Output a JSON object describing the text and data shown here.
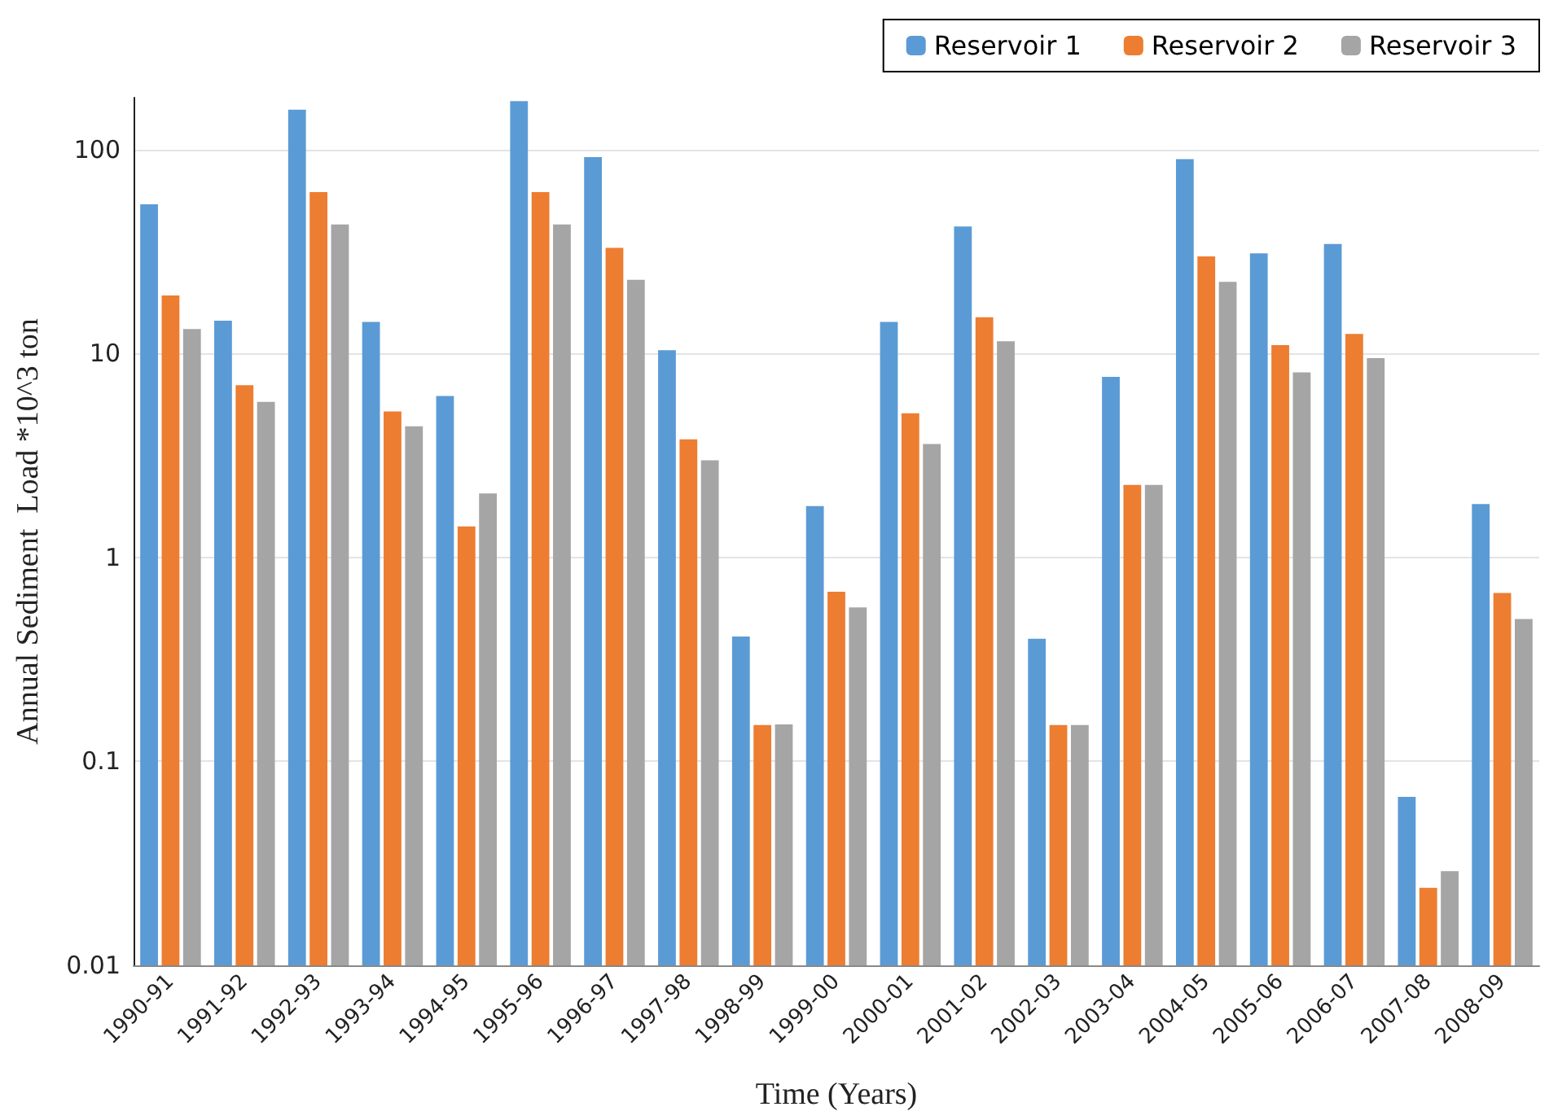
{
  "chart_data": {
    "type": "bar",
    "xlabel": "Time (Years)",
    "ylabel": "Annual Sediment  Load *10^3 ton",
    "categories": [
      "1990-91",
      "1991-92",
      "1992-93",
      "1993-94",
      "1994-95",
      "1995-96",
      "1996-97",
      "1997-98",
      "1998-99",
      "1999-00",
      "2000-01",
      "2001-02",
      "2002-03",
      "2003-04",
      "2004-05",
      "2005-06",
      "2006-07",
      "2007-08",
      "2008-09"
    ],
    "series": [
      {
        "name": "Reservoir 1",
        "color": "#5b9bd5",
        "values": [
          54,
          14.5,
          157,
          14.3,
          6.2,
          173,
          92,
          10.4,
          0.41,
          1.79,
          14.3,
          42,
          0.4,
          7.7,
          90,
          31,
          34.5,
          0.067,
          1.83
        ]
      },
      {
        "name": "Reservoir 2",
        "color": "#ed7d31",
        "values": [
          19.3,
          7.0,
          62,
          5.2,
          1.42,
          62,
          33,
          3.8,
          0.151,
          0.68,
          5.1,
          15.1,
          0.151,
          2.27,
          30,
          11,
          12.5,
          0.024,
          0.67
        ]
      },
      {
        "name": "Reservoir 3",
        "color": "#a5a5a5",
        "values": [
          13.2,
          5.8,
          43,
          4.4,
          2.06,
          43,
          23,
          3.0,
          0.152,
          0.57,
          3.6,
          11.5,
          0.151,
          2.27,
          22.5,
          8.1,
          9.5,
          0.029,
          0.5
        ]
      }
    ],
    "log": true,
    "ylim": [
      0.01,
      180
    ],
    "yticks": [
      0.01,
      0.1,
      1,
      10,
      100
    ],
    "grid": "y",
    "legend": "top right"
  }
}
